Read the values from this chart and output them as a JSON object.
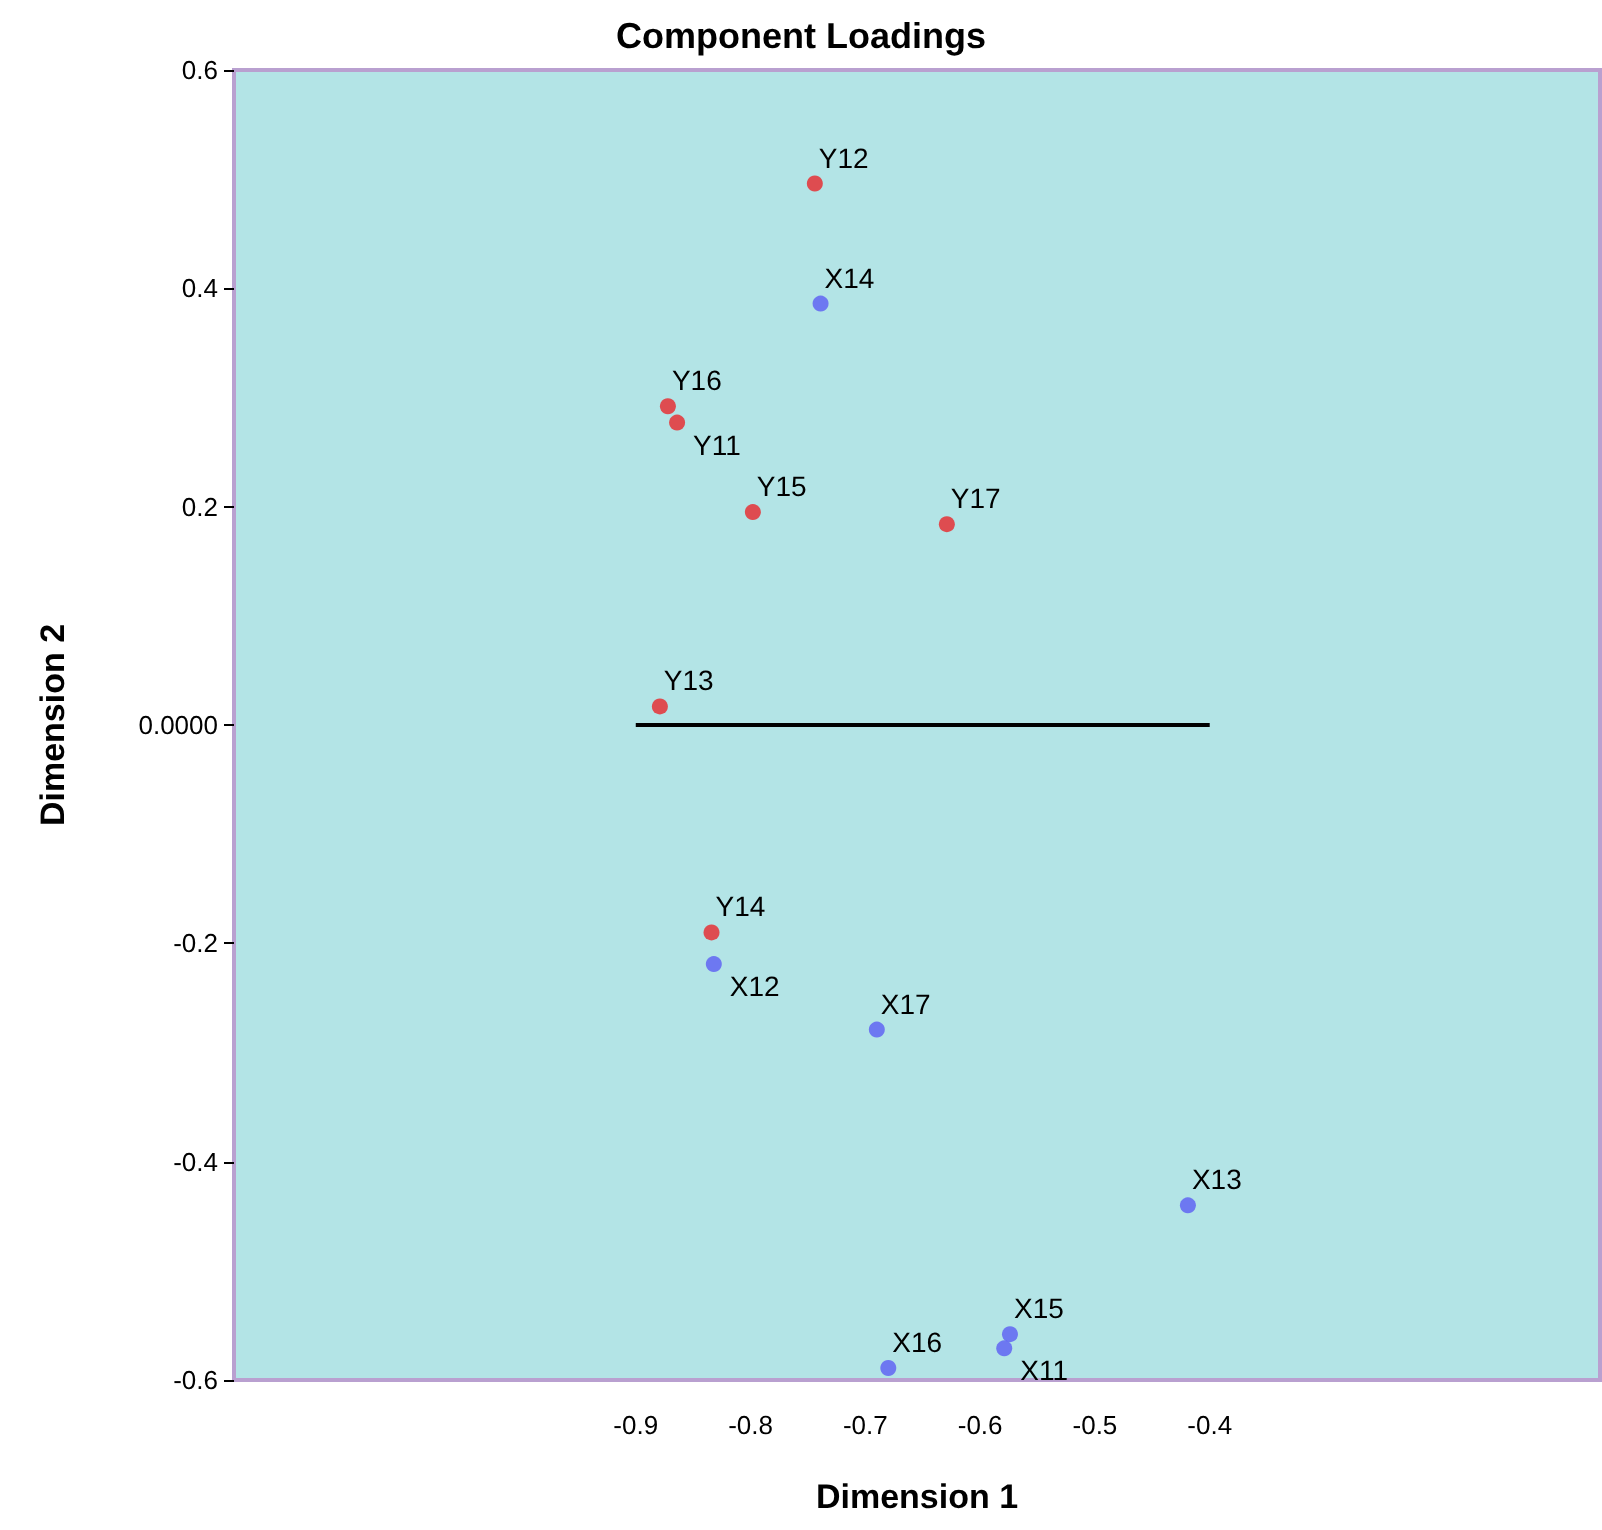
{
  "chart_data": {
    "type": "scatter",
    "title": "Component Loadings",
    "xlabel": "Dimension 1",
    "ylabel": "Dimension 2",
    "xlim": [
      -1.25,
      -0.06
    ],
    "xticks": [
      -0.9,
      -0.8,
      -0.7,
      -0.6,
      -0.5,
      -0.4
    ],
    "ylim": [
      -0.6,
      0.6
    ],
    "yticks": [
      -0.6,
      -0.4,
      -0.2,
      {
        "value": 0,
        "label": "0.0000"
      },
      0.2,
      0.4,
      0.6
    ],
    "grid": false,
    "marker": "circle",
    "series": [
      {
        "color": "#e8262a",
        "x": [
          -0.744,
          -0.872,
          -0.864,
          -0.798,
          -0.629,
          -0.879,
          -0.834
        ],
        "values": [
          0.496,
          0.292,
          0.277,
          0.195,
          0.184,
          0.017,
          -0.19
        ]
      },
      {
        "color": "#5b5cf4",
        "x": [
          -0.739,
          -0.832,
          -0.69,
          -0.419,
          -0.574,
          -0.579,
          -0.68
        ],
        "values": [
          0.386,
          -0.219,
          -0.279,
          -0.44,
          -0.558,
          -0.571,
          -0.589
        ]
      },
      {
        "type": "line",
        "color": "#000000",
        "marker": "none",
        "x": [
          -0.9,
          -0.4
        ],
        "values": [
          0,
          0
        ]
      }
    ],
    "annotations": [
      {
        "text": "Y12",
        "x": -0.744,
        "y": 0.496
      },
      {
        "text": "Y16",
        "x": -0.872,
        "y": 0.292
      },
      {
        "text": "Y11",
        "x": -0.864,
        "y": 0.277
      },
      {
        "text": "Y15",
        "x": -0.798,
        "y": 0.195
      },
      {
        "text": "Y17",
        "x": -0.629,
        "y": 0.184
      },
      {
        "text": "Y13",
        "x": -0.879,
        "y": 0.017
      },
      {
        "text": "Y14",
        "x": -0.834,
        "y": -0.19
      },
      {
        "text": "X14",
        "x": -0.739,
        "y": 0.386
      },
      {
        "text": "X12",
        "x": -0.832,
        "y": -0.219
      },
      {
        "text": "X17",
        "x": -0.69,
        "y": -0.279
      },
      {
        "text": "X13",
        "x": -0.419,
        "y": -0.44
      },
      {
        "text": "X15",
        "x": -0.574,
        "y": -0.558
      },
      {
        "text": "X11",
        "x": -0.579,
        "y": -0.571
      },
      {
        "text": "X16",
        "x": -0.68,
        "y": -0.589
      }
    ]
  }
}
